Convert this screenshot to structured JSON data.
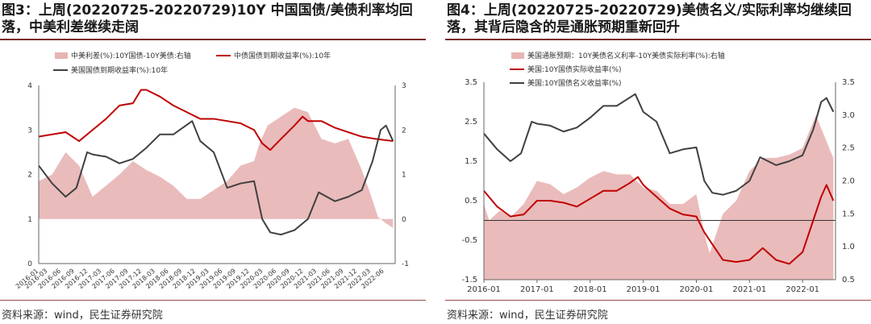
{
  "panels": [
    {
      "title": "图3：上周(20220725-20220729)10Y 中国国债/美债利率均回落，中美利差继续走阔",
      "source": "资料来源：wind，民生证券研究院"
    },
    {
      "title": "图4：上周(20220725-20220729)美债名义/实际利率均继续回落，其背后隐含的是通胀预期重新回升",
      "source": "资料来源：wind，民生证券研究院"
    }
  ],
  "chart_data": [
    {
      "type": "line",
      "title": "",
      "legend": [
        "中美利差(%):10Y国债-10Y美债:右轴",
        "中债国债到期收益率(%):10年",
        "美国国债到期收益率(%):10年"
      ],
      "legend_placement": "top",
      "x_ticks": [
        "2016-01",
        "2016-03",
        "2016-06",
        "2016-09",
        "2016-12",
        "2017-03",
        "2017-06",
        "2017-09",
        "2017-12",
        "2018-03",
        "2018-06",
        "2018-09",
        "2018-12",
        "2019-03",
        "2019-06",
        "2019-09",
        "2019-12",
        "2020-03",
        "2020-06",
        "2020-09",
        "2020-12",
        "2021-03",
        "2021-06",
        "2021-09",
        "2021-12",
        "2022-03",
        "2022-06"
      ],
      "y_left": {
        "ticks": [
          "0",
          "1",
          "2",
          "3",
          "4"
        ],
        "range": [
          0,
          4
        ]
      },
      "y_right": {
        "ticks": [
          "-1",
          "0",
          "1",
          "2",
          "3"
        ],
        "range": [
          -1,
          3
        ]
      },
      "series": [
        {
          "name": "中美利差(%):10Y国债-10Y美债:右轴",
          "axis": "right",
          "kind": "area",
          "color": "#e8b4b4",
          "x": [
            2016.0,
            2016.25,
            2016.5,
            2016.75,
            2017.0,
            2017.25,
            2017.5,
            2017.75,
            2018.0,
            2018.25,
            2018.5,
            2018.75,
            2019.0,
            2019.25,
            2019.5,
            2019.75,
            2020.0,
            2020.1,
            2020.25,
            2020.5,
            2020.75,
            2021.0,
            2021.25,
            2021.5,
            2021.75,
            2022.0,
            2022.15,
            2022.3,
            2022.45,
            2022.58
          ],
          "y": [
            0.85,
            1.0,
            1.5,
            1.2,
            0.5,
            0.75,
            1.0,
            1.3,
            1.1,
            0.95,
            0.75,
            0.45,
            0.45,
            0.65,
            0.85,
            1.2,
            1.3,
            1.7,
            2.1,
            2.3,
            2.5,
            2.4,
            1.8,
            1.7,
            1.8,
            1.1,
            0.6,
            0.05,
            -0.1,
            -0.2
          ]
        },
        {
          "name": "中债国债到期收益率(%):10年",
          "axis": "left",
          "kind": "line",
          "color": "#c00000",
          "x": [
            2016.0,
            2016.25,
            2016.5,
            2016.75,
            2017.0,
            2017.25,
            2017.5,
            2017.75,
            2017.9,
            2018.0,
            2018.25,
            2018.5,
            2018.75,
            2019.0,
            2019.25,
            2019.5,
            2019.75,
            2020.0,
            2020.15,
            2020.3,
            2020.5,
            2020.75,
            2020.9,
            2021.0,
            2021.25,
            2021.5,
            2021.75,
            2022.0,
            2022.25,
            2022.58
          ],
          "y": [
            2.85,
            2.9,
            2.95,
            2.75,
            3.0,
            3.25,
            3.55,
            3.6,
            3.9,
            3.9,
            3.75,
            3.55,
            3.4,
            3.25,
            3.25,
            3.2,
            3.15,
            3.0,
            2.7,
            2.55,
            2.8,
            3.1,
            3.3,
            3.2,
            3.2,
            3.05,
            2.95,
            2.85,
            2.8,
            2.75
          ]
        },
        {
          "name": "美国国债到期收益率(%):10年",
          "axis": "left",
          "kind": "line",
          "color": "#404040",
          "x": [
            2016.0,
            2016.25,
            2016.5,
            2016.7,
            2016.9,
            2017.0,
            2017.25,
            2017.5,
            2017.75,
            2018.0,
            2018.25,
            2018.5,
            2018.85,
            2019.0,
            2019.25,
            2019.5,
            2019.75,
            2020.0,
            2020.15,
            2020.3,
            2020.5,
            2020.75,
            2021.0,
            2021.2,
            2021.5,
            2021.75,
            2022.0,
            2022.2,
            2022.35,
            2022.45,
            2022.58
          ],
          "y": [
            2.2,
            1.8,
            1.5,
            1.7,
            2.5,
            2.45,
            2.4,
            2.25,
            2.35,
            2.6,
            2.9,
            2.9,
            3.2,
            2.75,
            2.5,
            1.7,
            1.8,
            1.85,
            1.0,
            0.7,
            0.65,
            0.75,
            1.0,
            1.6,
            1.4,
            1.5,
            1.65,
            2.3,
            3.0,
            3.1,
            2.75
          ]
        }
      ]
    },
    {
      "type": "line",
      "title": "",
      "legend": [
        "美国通胀预期：10Y美债名义利率-10Y美债实际利率(%):右轴",
        "美国:10Y国债实际收益率(%)",
        "美国:10Y国债名义收益率(%)"
      ],
      "legend_placement": "top",
      "x_ticks": [
        "2016-01",
        "2017-01",
        "2018-01",
        "2019-01",
        "2020-01",
        "2021-01",
        "2022-01"
      ],
      "y_left": {
        "ticks": [
          "-1.5",
          "-0.5",
          "0.5",
          "1.5",
          "2.5",
          "3.5"
        ],
        "range": [
          -1.5,
          3.5
        ]
      },
      "y_right": {
        "ticks": [
          "0.5",
          "1.0",
          "1.5",
          "2.0",
          "2.5",
          "3.0",
          "3.5"
        ],
        "range": [
          0.5,
          3.5
        ]
      },
      "zero_line": 0,
      "series": [
        {
          "name": "美国通胀预期：10Y美债名义利率-10Y美债实际利率(%):右轴",
          "axis": "right",
          "kind": "area",
          "color": "#e8b4b4",
          "x": [
            2016.0,
            2016.1,
            2016.3,
            2016.5,
            2016.75,
            2017.0,
            2017.25,
            2017.5,
            2017.75,
            2018.0,
            2018.25,
            2018.5,
            2018.75,
            2019.0,
            2019.25,
            2019.5,
            2019.75,
            2020.0,
            2020.15,
            2020.25,
            2020.5,
            2020.75,
            2021.0,
            2021.25,
            2021.5,
            2021.75,
            2022.0,
            2022.25,
            2022.5,
            2022.58
          ],
          "y": [
            1.65,
            1.4,
            1.55,
            1.45,
            1.65,
            2.0,
            1.95,
            1.8,
            1.9,
            2.05,
            2.15,
            2.1,
            2.1,
            1.9,
            1.85,
            1.65,
            1.65,
            1.8,
            1.2,
            0.9,
            1.5,
            1.7,
            2.15,
            2.35,
            2.35,
            2.4,
            2.5,
            3.0,
            2.5,
            2.35
          ]
        },
        {
          "name": "美国:10Y国债实际收益率(%)",
          "axis": "left",
          "kind": "line",
          "color": "#c00000",
          "x": [
            2016.0,
            2016.25,
            2016.5,
            2016.75,
            2017.0,
            2017.25,
            2017.5,
            2017.75,
            2018.0,
            2018.25,
            2018.5,
            2018.75,
            2018.9,
            2019.0,
            2019.25,
            2019.5,
            2019.75,
            2020.0,
            2020.15,
            2020.3,
            2020.5,
            2020.75,
            2021.0,
            2021.25,
            2021.5,
            2021.75,
            2022.0,
            2022.2,
            2022.35,
            2022.45,
            2022.58
          ],
          "y": [
            0.75,
            0.35,
            0.1,
            0.15,
            0.5,
            0.5,
            0.45,
            0.35,
            0.55,
            0.75,
            0.75,
            0.95,
            1.1,
            0.9,
            0.6,
            0.3,
            0.15,
            0.1,
            -0.3,
            -0.6,
            -1.0,
            -1.05,
            -1.0,
            -0.7,
            -1.0,
            -1.1,
            -0.8,
            0.0,
            0.6,
            0.9,
            0.5
          ]
        },
        {
          "name": "美国:10Y国债名义收益率(%)",
          "axis": "left",
          "kind": "line",
          "color": "#404040",
          "x": [
            2016.0,
            2016.25,
            2016.5,
            2016.7,
            2016.9,
            2017.0,
            2017.25,
            2017.5,
            2017.75,
            2018.0,
            2018.25,
            2018.5,
            2018.85,
            2019.0,
            2019.25,
            2019.5,
            2019.75,
            2020.0,
            2020.15,
            2020.3,
            2020.5,
            2020.75,
            2021.0,
            2021.2,
            2021.5,
            2021.75,
            2022.0,
            2022.2,
            2022.35,
            2022.45,
            2022.58
          ],
          "y": [
            2.2,
            1.8,
            1.5,
            1.7,
            2.5,
            2.45,
            2.4,
            2.25,
            2.35,
            2.6,
            2.9,
            2.9,
            3.2,
            2.75,
            2.5,
            1.7,
            1.8,
            1.85,
            1.0,
            0.7,
            0.65,
            0.75,
            1.0,
            1.6,
            1.4,
            1.5,
            1.65,
            2.3,
            3.0,
            3.1,
            2.75
          ]
        }
      ]
    }
  ]
}
